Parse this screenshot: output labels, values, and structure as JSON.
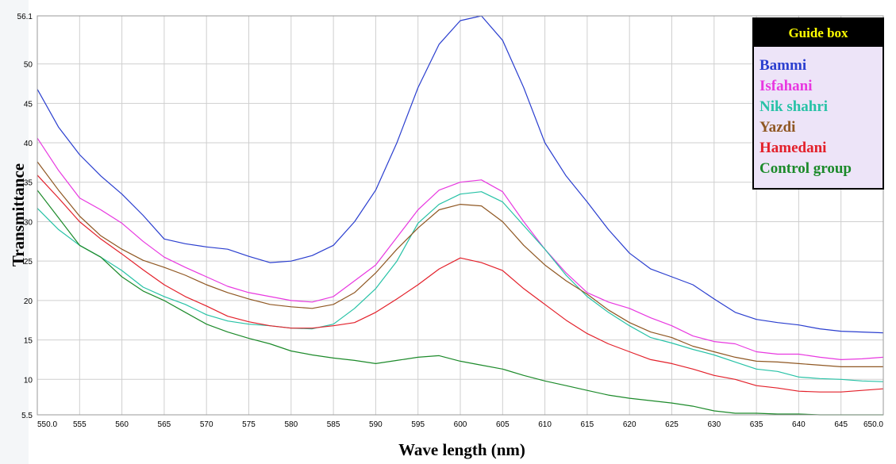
{
  "chart_data": {
    "type": "line",
    "xlabel": "Wave length (nm)",
    "ylabel": "Transmittance",
    "xlim": [
      550,
      650
    ],
    "ylim": [
      5.5,
      56.1
    ],
    "x_ticks": [
      "550.0",
      "555",
      "560",
      "565",
      "570",
      "575",
      "580",
      "585",
      "590",
      "595",
      "600",
      "605",
      "610",
      "615",
      "620",
      "625",
      "630",
      "635",
      "640",
      "645",
      "650.0"
    ],
    "y_ticks": [
      "5.5",
      "10",
      "15",
      "20",
      "25",
      "30",
      "35",
      "40",
      "45",
      "50",
      "56.1"
    ],
    "grid": true,
    "legend": {
      "title": "Guide box",
      "title_color": "#ffff00",
      "title_bg": "#000000",
      "bg": "#ede4f8",
      "placement": "top-right"
    },
    "x": [
      550,
      552.5,
      555,
      557.5,
      560,
      562.5,
      565,
      567.5,
      570,
      572.5,
      575,
      577.5,
      580,
      582.5,
      585,
      587.5,
      590,
      592.5,
      595,
      597.5,
      600,
      602.5,
      605,
      607.5,
      610,
      612.5,
      615,
      617.5,
      620,
      622.5,
      625,
      627.5,
      630,
      632.5,
      635,
      637.5,
      640,
      642.5,
      645,
      647.5,
      650
    ],
    "series": [
      {
        "name": "Bammi",
        "color": "#2a3ecf",
        "values": [
          46.8,
          42,
          38.5,
          35.8,
          33.5,
          30.8,
          27.8,
          27.2,
          26.8,
          26.5,
          25.6,
          24.8,
          25,
          25.7,
          27,
          30,
          34,
          40,
          47,
          52.5,
          55.5,
          56.1,
          53,
          47,
          40,
          35.8,
          32.5,
          29,
          26,
          24,
          23,
          22,
          20.2,
          18.5,
          17.6,
          17.2,
          16.9,
          16.4,
          16.1,
          16,
          15.9
        ]
      },
      {
        "name": "Isfahani",
        "color": "#e838e0",
        "values": [
          40.6,
          36.5,
          33,
          31.5,
          29.8,
          27.5,
          25.5,
          24.2,
          23,
          21.8,
          21,
          20.5,
          20,
          19.8,
          20.5,
          22.5,
          24.5,
          28,
          31.5,
          34,
          35,
          35.3,
          33.8,
          30,
          26.5,
          23.5,
          21,
          19.8,
          19,
          17.8,
          16.8,
          15.5,
          14.8,
          14.5,
          13.5,
          13.2,
          13.2,
          12.8,
          12.5,
          12.6,
          12.8
        ]
      },
      {
        "name": "Nik shahri",
        "color": "#27c2a6",
        "values": [
          31.7,
          29,
          27,
          25.5,
          23.8,
          21.7,
          20.5,
          19.5,
          18.2,
          17.4,
          17,
          16.8,
          16.5,
          16.4,
          17,
          19,
          21.5,
          25,
          29.8,
          32.2,
          33.5,
          33.8,
          32.5,
          29.5,
          26.5,
          23.2,
          20.5,
          18.5,
          16.8,
          15.3,
          14.6,
          13.8,
          13.1,
          12.2,
          11.3,
          11,
          10.3,
          10.1,
          10,
          9.8,
          9.7
        ]
      },
      {
        "name": "Yazdi",
        "color": "#8f5722",
        "values": [
          37.6,
          34,
          30.7,
          28.2,
          26.5,
          25.1,
          24.2,
          23.2,
          22,
          21,
          20.2,
          19.5,
          19.2,
          19,
          19.5,
          21,
          23.5,
          26.5,
          29.2,
          31.5,
          32.2,
          32,
          30,
          27,
          24.5,
          22.5,
          20.8,
          18.8,
          17.2,
          16,
          15.3,
          14.2,
          13.5,
          12.8,
          12.3,
          12.2,
          12,
          11.8,
          11.6,
          11.6,
          11.6
        ]
      },
      {
        "name": "Hamedani",
        "color": "#e3202a",
        "values": [
          35.9,
          33,
          30,
          27.8,
          25.9,
          23.9,
          22,
          20.5,
          19.3,
          18,
          17.3,
          16.8,
          16.5,
          16.5,
          16.8,
          17.2,
          18.5,
          20.2,
          22,
          24,
          25.4,
          24.8,
          23.8,
          21.5,
          19.5,
          17.5,
          15.8,
          14.5,
          13.5,
          12.5,
          12,
          11.3,
          10.5,
          10,
          9.2,
          8.9,
          8.5,
          8.4,
          8.4,
          8.6,
          8.8
        ]
      },
      {
        "name": "Control group",
        "color": "#1c8a2a",
        "values": [
          34,
          30.5,
          27,
          25.5,
          23,
          21.2,
          20,
          18.5,
          17,
          16,
          15.2,
          14.5,
          13.6,
          13.1,
          12.7,
          12.4,
          12,
          12.4,
          12.8,
          13,
          12.3,
          11.8,
          11.3,
          10.5,
          9.8,
          9.2,
          8.6,
          8,
          7.6,
          7.3,
          7,
          6.6,
          6,
          5.7,
          5.7,
          5.6,
          5.6,
          5.5,
          5.5,
          5.5,
          5.5
        ]
      }
    ]
  }
}
